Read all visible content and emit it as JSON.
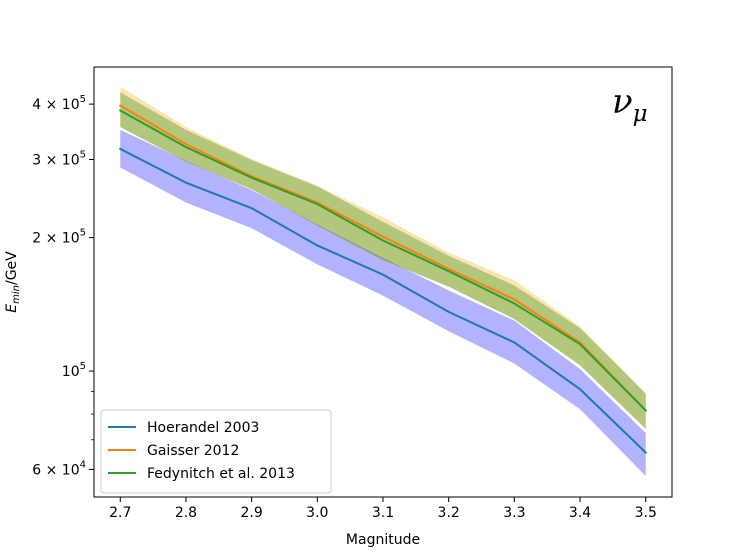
{
  "chart_data": {
    "type": "line",
    "x_scale": "linear",
    "y_scale": "log",
    "xlabel": "Magnitude",
    "ylabel_main": "E",
    "ylabel_sub": "min",
    "ylabel_tail": "/GeV",
    "annotation_main": "ν",
    "annotation_sub": "μ",
    "xlim": [
      2.66,
      3.54
    ],
    "ylim": [
      52000,
      485000
    ],
    "x_ticks": [
      2.7,
      2.8,
      2.9,
      3.0,
      3.1,
      3.2,
      3.3,
      3.4,
      3.5
    ],
    "x_tick_labels": [
      "2.7",
      "2.8",
      "2.9",
      "3.0",
      "3.1",
      "3.2",
      "3.3",
      "3.4",
      "3.5"
    ],
    "y_ticks": [
      {
        "value": 60000,
        "mantissa": "6 × 10",
        "exp": "4"
      },
      {
        "value": 100000,
        "mantissa": "10",
        "exp": "5"
      },
      {
        "value": 200000,
        "mantissa": "2 × 10",
        "exp": "5"
      },
      {
        "value": 300000,
        "mantissa": "3 × 10",
        "exp": "5"
      },
      {
        "value": 400000,
        "mantissa": "4 × 10",
        "exp": "5"
      }
    ],
    "legend_position": "lower-left",
    "x": [
      2.7,
      2.8,
      2.9,
      3.0,
      3.1,
      3.2,
      3.3,
      3.4,
      3.5
    ],
    "series": [
      {
        "name": "Hoerandel 2003",
        "color": "#1f77b4",
        "band_color": "#0000ff",
        "values": [
          317000,
          266000,
          233000,
          192000,
          165000,
          136000,
          116000,
          91000,
          65500
        ],
        "lower": [
          288000,
          240000,
          210000,
          174000,
          148000,
          123000,
          104000,
          82000,
          58000
        ],
        "upper": [
          350000,
          298000,
          256000,
          214000,
          180000,
          152000,
          130000,
          101000,
          72500
        ]
      },
      {
        "name": "Gaisser 2012",
        "color": "#ff7f0e",
        "band_color": "#ffa500",
        "values": [
          397000,
          325000,
          275000,
          240000,
          201000,
          170000,
          145000,
          116000,
          81500
        ],
        "lower": [
          355000,
          297000,
          257000,
          213000,
          178000,
          155000,
          131000,
          103000,
          74000
        ],
        "upper": [
          438000,
          355000,
          301000,
          262000,
          222000,
          185000,
          160000,
          126000,
          89000
        ]
      },
      {
        "name": "Fedynitch et al. 2013",
        "color": "#2ca02c",
        "band_color": "#008000",
        "values": [
          387000,
          320000,
          273000,
          238000,
          197000,
          168000,
          142000,
          115000,
          81500
        ],
        "lower": [
          355000,
          297000,
          257000,
          213000,
          178000,
          155000,
          131000,
          103000,
          74000
        ],
        "upper": [
          425000,
          350000,
          299000,
          261000,
          217000,
          182000,
          156000,
          125000,
          89000
        ]
      }
    ]
  }
}
